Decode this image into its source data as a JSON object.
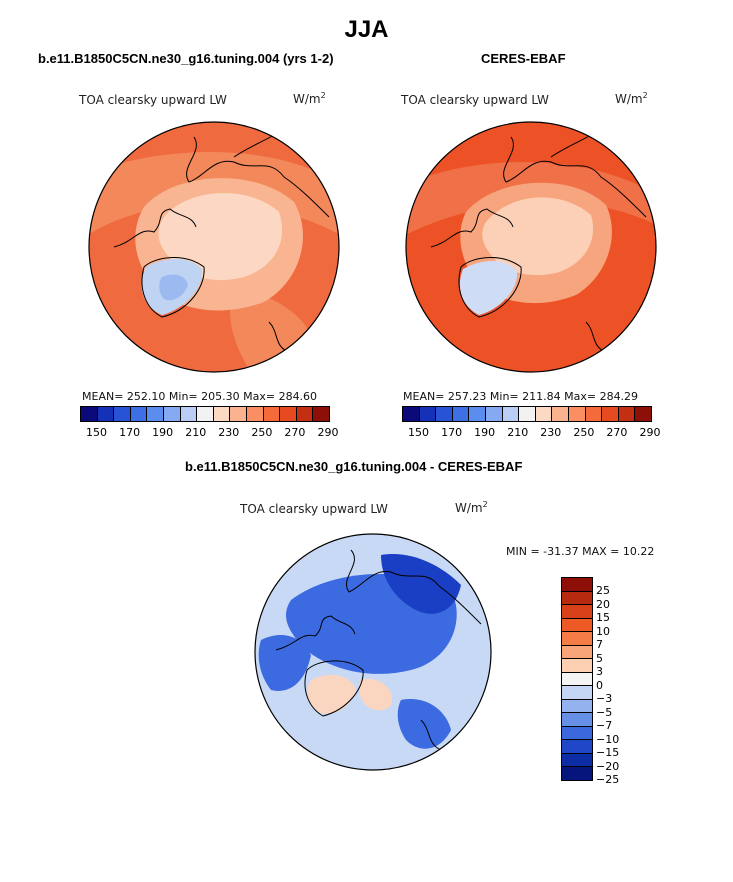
{
  "figure": {
    "season_title": "JJA"
  },
  "panels": {
    "model": {
      "title": "b.e11.B1850C5CN.ne30_g16.tuning.004 (yrs 1-2)",
      "variable": "TOA clearsky upward LW",
      "units_base": "W/m",
      "units_exp": "2",
      "stats": "MEAN= 252.10   Min= 205.30   Max= 284.60"
    },
    "obs": {
      "title": "CERES-EBAF",
      "variable": "TOA clearsky upward LW",
      "units_base": "W/m",
      "units_exp": "2",
      "stats": "MEAN= 257.23   Min= 211.84   Max= 284.29"
    },
    "diff": {
      "title": "b.e11.B1850C5CN.ne30_g16.tuning.004 - CERES-EBAF",
      "variable": "TOA clearsky upward LW",
      "units_base": "W/m",
      "units_exp": "2",
      "stats": "MIN = -31.37 MAX =   10.22"
    }
  },
  "colorbars": {
    "abs_colors": [
      "#0a0a78",
      "#1531b8",
      "#2853d6",
      "#3f6fe4",
      "#5b8def",
      "#86aaf2",
      "#b9cdf5",
      "#f2f2f2",
      "#fcd9c2",
      "#fbb38f",
      "#f98f63",
      "#f56a3a",
      "#e54a20",
      "#c42e12",
      "#8e0f08"
    ],
    "abs_labels": [
      "150",
      "170",
      "190",
      "210",
      "230",
      "250",
      "270",
      "290"
    ],
    "diff_colors": [
      "#8e0f08",
      "#b82a10",
      "#d8401a",
      "#ee5a26",
      "#f57c46",
      "#f9a57a",
      "#fcd0b0",
      "#f4f4f4",
      "#c4d6f4",
      "#93b2ee",
      "#6690e6",
      "#3b68dc",
      "#1f47c8",
      "#0d2da6",
      "#06157c"
    ],
    "diff_labels": [
      "25",
      "20",
      "15",
      "10",
      "7",
      "5",
      "3",
      "0",
      "−3",
      "−5",
      "−7",
      "−10",
      "−15",
      "−20",
      "−25"
    ]
  },
  "map_colors": {
    "model_base": "#f06a40",
    "model_warm": "#f3885a",
    "model_mid": "#f9b592",
    "model_pale": "#fcd8c4",
    "model_ice": "#bfd3f3",
    "model_ice_deep": "#9dbaf0",
    "obs_base": "#ec5226",
    "obs_warm": "#f07048",
    "obs_mid": "#f7a57e",
    "obs_pale": "#fcd0b6",
    "obs_ice": "#cfdcf5",
    "diff_base": "#c8d9f5",
    "diff_blue": "#3c6ae0",
    "diff_deep": "#1a3ec4",
    "diff_pale": "#fad6c0"
  }
}
